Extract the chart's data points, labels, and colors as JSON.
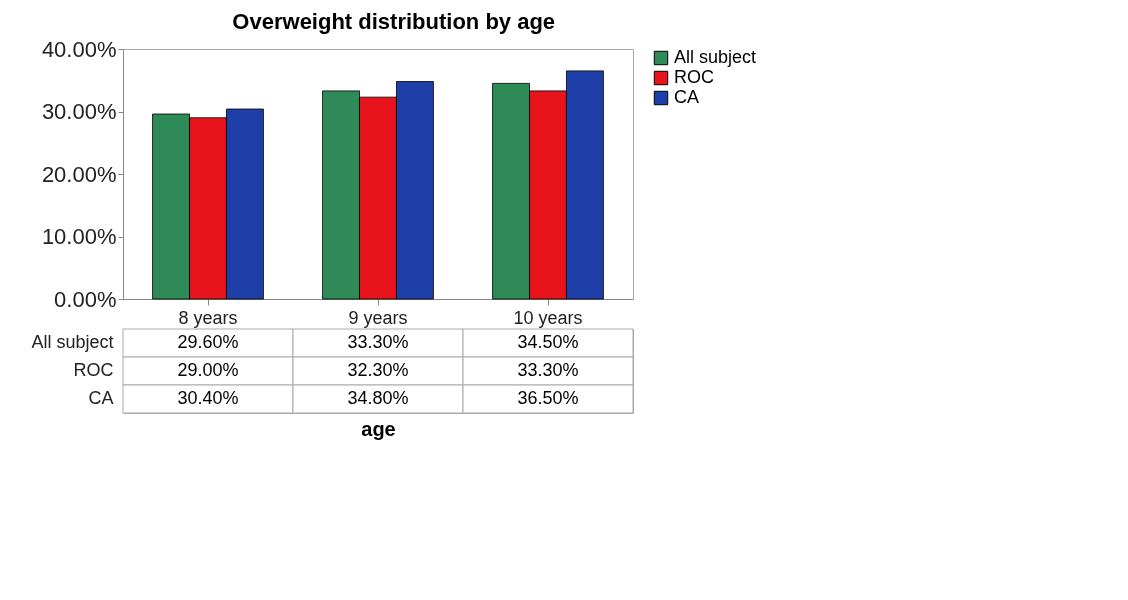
{
  "chart_data": {
    "type": "bar",
    "title": "Overweight distribution by age",
    "xlabel": "age",
    "categories": [
      "8 years",
      "9 years",
      "10 years"
    ],
    "series": [
      {
        "name": "All subject",
        "color": "#2e8b57",
        "values": [
          29.6,
          33.3,
          34.5
        ],
        "value_labels": [
          "29.60%",
          "33.30%",
          "34.50%"
        ]
      },
      {
        "name": "ROC",
        "color": "#e8141b",
        "values": [
          29.0,
          32.3,
          33.3
        ],
        "value_labels": [
          "29.00%",
          "32.30%",
          "33.30%"
        ]
      },
      {
        "name": "CA",
        "color": "#1f3fa8",
        "values": [
          30.4,
          34.8,
          36.5
        ],
        "value_labels": [
          "30.40%",
          "34.80%",
          "36.50%"
        ]
      }
    ],
    "ylim": [
      0,
      40
    ],
    "yticks": [
      {
        "value": 0,
        "label": "0.00%"
      },
      {
        "value": 10,
        "label": "10.00%"
      },
      {
        "value": 20,
        "label": "20.00%"
      },
      {
        "value": 30,
        "label": "30.00%"
      },
      {
        "value": 40,
        "label": "40.00%"
      }
    ],
    "legend": "right"
  }
}
